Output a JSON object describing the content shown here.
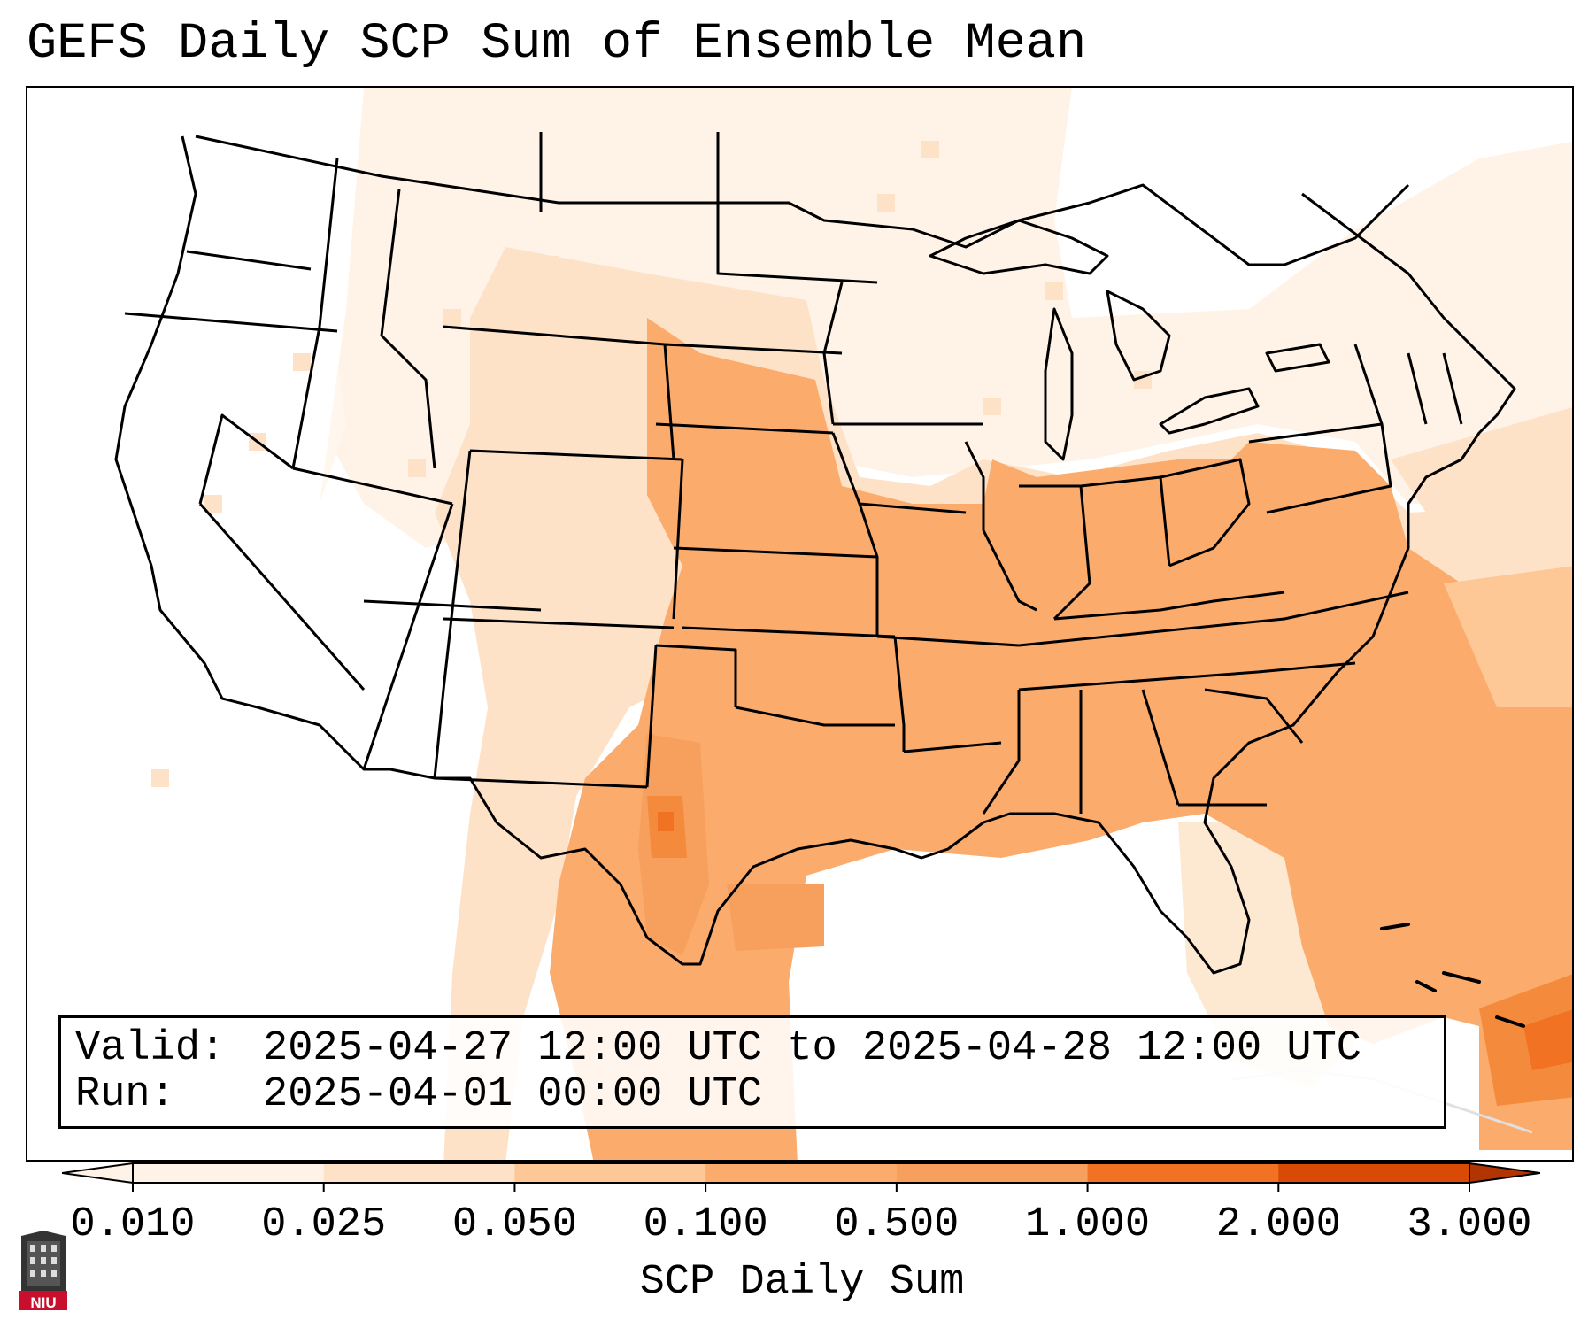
{
  "title": "GEFS Daily SCP Sum of Ensemble Mean",
  "info": {
    "valid_label": "Valid:",
    "valid_value": "2025-04-27 12:00 UTC to 2025-04-28 12:00 UTC",
    "run_label": "Run:",
    "run_value": "2025-04-01 00:00 UTC"
  },
  "colorbar": {
    "label": "SCP Daily Sum",
    "ticks": [
      "0.010",
      "0.025",
      "0.050",
      "0.100",
      "0.500",
      "1.000",
      "2.000",
      "3.000"
    ],
    "colors": [
      "#fff3e8",
      "#fde2c8",
      "#fdc896",
      "#fbab6c",
      "#f7a05d",
      "#f07222",
      "#d84a06",
      "#b03500"
    ],
    "extend": "both"
  },
  "logo": {
    "text": "NIU",
    "color": "#c8102e"
  },
  "colors": {
    "lightest": "#fff3e8",
    "light": "#fde2c8",
    "medium_light": "#fdc896",
    "medium": "#fbab6c",
    "strong": "#f07222",
    "boundary": "#000000"
  }
}
